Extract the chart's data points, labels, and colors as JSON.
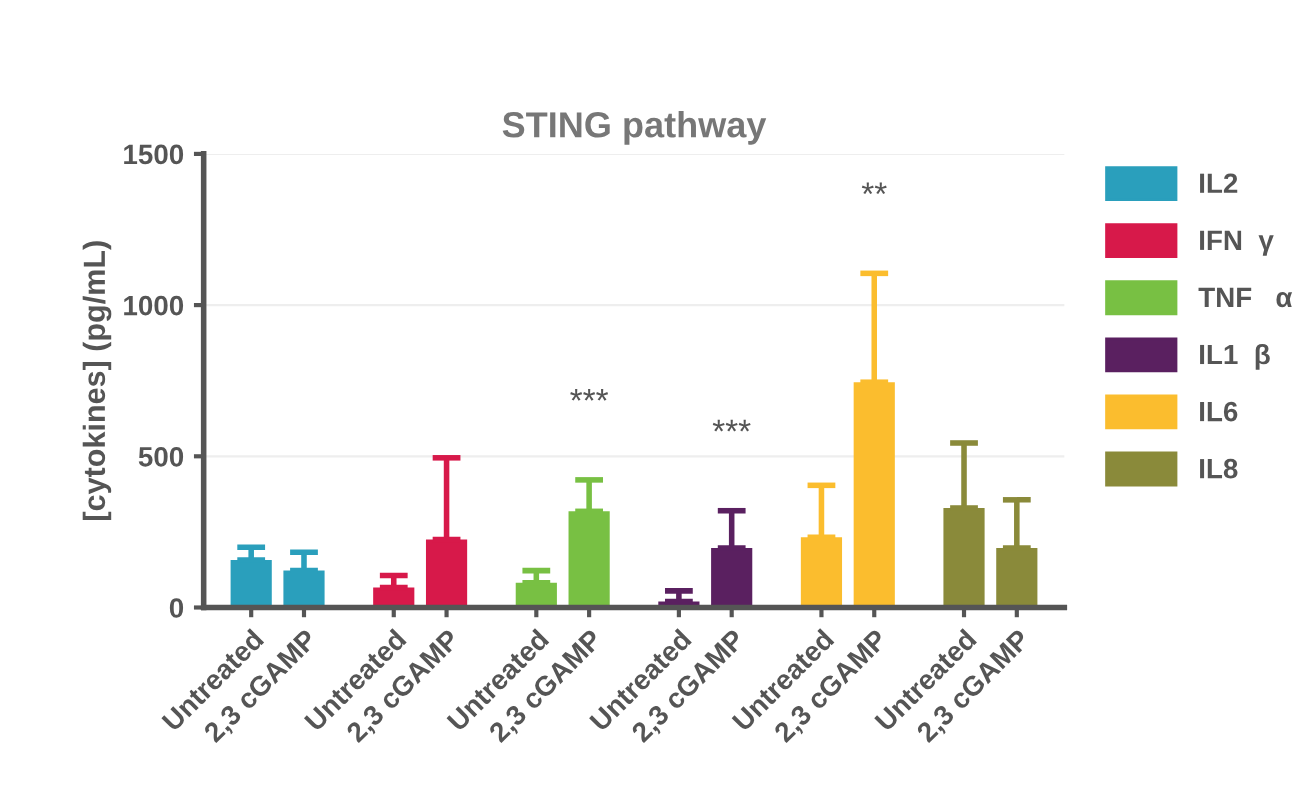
{
  "chart_data": {
    "type": "bar",
    "title": "STING pathway",
    "ylabel": "[cytokines] (pg/mL)",
    "categories": [
      "Untreated",
      "2,3 cGAMP",
      "Untreated",
      "2,3 cGAMP",
      "Untreated",
      "2,3 cGAMP",
      "Untreated",
      "2,3 cGAMP",
      "Untreated",
      "2,3 cGAMP",
      "Untreated",
      "2,3 cGAMP"
    ],
    "series": [
      {
        "name": "IL2",
        "color": "#2a9fbc",
        "values": [
          157,
          122,
          null,
          null,
          null,
          null,
          null,
          null,
          null,
          null,
          null,
          null
        ],
        "errors": [
          [
            157,
            199
          ],
          [
            122,
            183
          ],
          null,
          null,
          null,
          null,
          null,
          null,
          null,
          null,
          null,
          null
        ]
      },
      {
        "name": "IFN  γ",
        "color": "#d7194a",
        "values": [
          null,
          null,
          66,
          225,
          null,
          null,
          null,
          null,
          null,
          null,
          null,
          null
        ],
        "errors": [
          null,
          null,
          [
            66,
            106
          ],
          [
            225,
            495
          ],
          null,
          null,
          null,
          null,
          null,
          null,
          null,
          null
        ]
      },
      {
        "name": "TNF   α",
        "color": "#78c043",
        "values": [
          null,
          null,
          null,
          null,
          82,
          318,
          null,
          null,
          null,
          null,
          null,
          null
        ],
        "errors": [
          null,
          null,
          null,
          null,
          [
            82,
            122
          ],
          [
            318,
            422
          ],
          null,
          null,
          null,
          null,
          null,
          null
        ]
      },
      {
        "name": "IL1  β",
        "color": "#5a2060",
        "values": [
          null,
          null,
          null,
          null,
          null,
          null,
          20,
          197,
          null,
          null,
          null,
          null
        ],
        "errors": [
          null,
          null,
          null,
          null,
          null,
          null,
          [
            20,
            55
          ],
          [
            197,
            320
          ],
          null,
          null,
          null,
          null
        ]
      },
      {
        "name": "IL6",
        "color": "#fbbd2e",
        "values": [
          null,
          null,
          null,
          null,
          null,
          null,
          null,
          null,
          232,
          745,
          null,
          null
        ],
        "errors": [
          null,
          null,
          null,
          null,
          null,
          null,
          null,
          null,
          [
            232,
            404
          ],
          [
            745,
            1105
          ],
          null,
          null
        ]
      },
      {
        "name": "IL8",
        "color": "#8a8a3a",
        "values": [
          null,
          null,
          null,
          null,
          null,
          null,
          null,
          null,
          null,
          null,
          329,
          197
        ],
        "errors": [
          null,
          null,
          null,
          null,
          null,
          null,
          null,
          null,
          null,
          null,
          [
            329,
            544
          ],
          [
            197,
            356
          ]
        ]
      }
    ],
    "ylim": [
      0,
      1500
    ],
    "yticks": [
      0,
      500,
      1000,
      1500
    ],
    "grid": "y",
    "legend": "right",
    "annotations": [
      "***",
      "***",
      "**"
    ]
  }
}
